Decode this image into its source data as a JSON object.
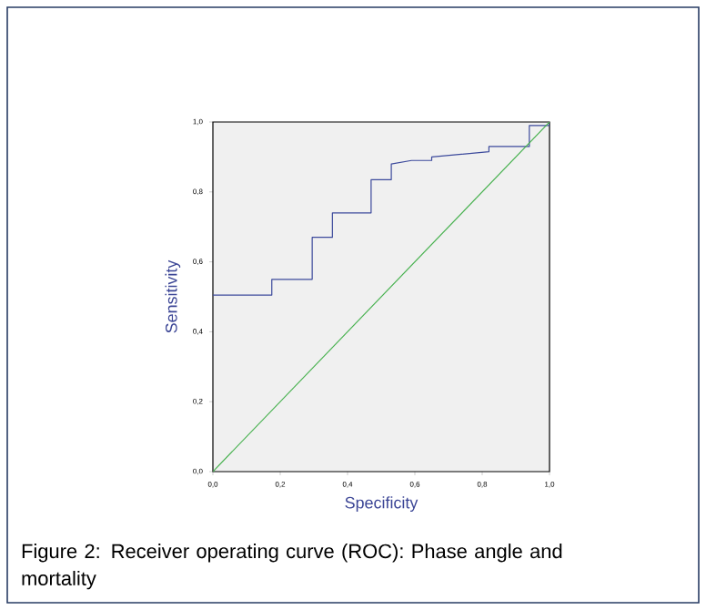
{
  "chart_data": {
    "type": "line",
    "xlabel": "Specificity",
    "ylabel": "Sensitivity",
    "annotations": [
      "Figure 2: Receiver operating curve (ROC): Phase angle and mortality"
    ],
    "xlim": [
      0,
      1
    ],
    "ylim": [
      0,
      1
    ],
    "xticks": [
      {
        "value": 0,
        "label": "0,0"
      },
      {
        "value": 0.2,
        "label": "0,2"
      },
      {
        "value": 0.4,
        "label": "0,4"
      },
      {
        "value": 0.6,
        "label": "0,6"
      },
      {
        "value": 0.8,
        "label": "0,8"
      },
      {
        "value": 1,
        "label": "1,0"
      }
    ],
    "yticks": [
      {
        "value": 0,
        "label": "0,0"
      },
      {
        "value": 0.2,
        "label": "0,2"
      },
      {
        "value": 0.4,
        "label": "0,4"
      },
      {
        "value": 0.6,
        "label": "0,6"
      },
      {
        "value": 0.8,
        "label": "0,8"
      },
      {
        "value": 1,
        "label": "1,0"
      }
    ],
    "series": [
      {
        "color": "#3c4a9c",
        "x": [
          0,
          0.175,
          0.175,
          0.295,
          0.295,
          0.355,
          0.355,
          0.47,
          0.47,
          0.53,
          0.53,
          0.59,
          0.65,
          0.65,
          0.82,
          0.82,
          0.94,
          0.94,
          1.0,
          1.0
        ],
        "values": [
          0.505,
          0.505,
          0.55,
          0.55,
          0.67,
          0.67,
          0.74,
          0.74,
          0.835,
          0.835,
          0.88,
          0.89,
          0.89,
          0.9,
          0.915,
          0.93,
          0.93,
          0.99,
          0.99,
          1.0
        ]
      },
      {
        "color": "#44b04c",
        "x": [
          0,
          1
        ],
        "values": [
          0,
          1
        ]
      }
    ]
  }
}
